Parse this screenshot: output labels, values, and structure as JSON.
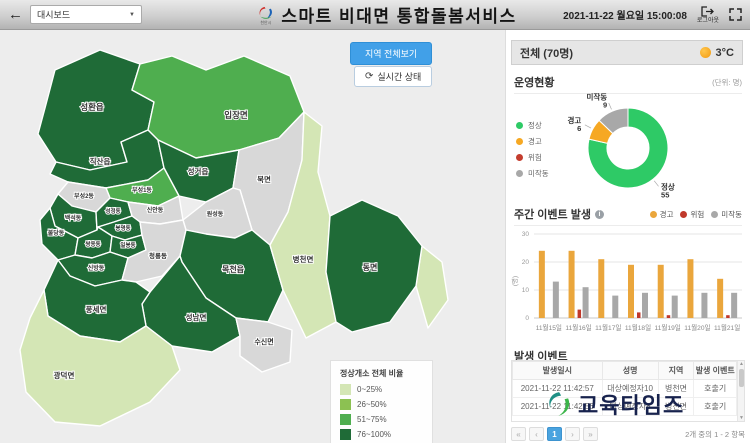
{
  "header": {
    "dashboard_select": "대시보드",
    "logo_caption": "천안시",
    "app_title": "스마트 비대면 통합돌봄서비스",
    "datetime": "2021-11-22 월요일 15:00:08",
    "logout_label": "로그아웃"
  },
  "map_pane": {
    "view_all_button": "지역 전체보기",
    "realtime_button": "실시간 상태",
    "legend": {
      "title": "정상개소 전체 비율",
      "items": [
        {
          "label": "0~25%",
          "color": "#d4e6b5"
        },
        {
          "label": "26~50%",
          "color": "#8cc152"
        },
        {
          "label": "51~75%",
          "color": "#4fae4f"
        },
        {
          "label": "76~100%",
          "color": "#1f6b37"
        }
      ]
    },
    "no_data_color": "#d8d8d8",
    "districts": [
      {
        "name": "성환읍",
        "level": 4
      },
      {
        "name": "입장면",
        "level": 3
      },
      {
        "name": "직산읍",
        "level": 4
      },
      {
        "name": "성거읍",
        "level": 4
      },
      {
        "name": "부성1동",
        "level": 3
      },
      {
        "name": "부성2동",
        "level": 0
      },
      {
        "name": "북면",
        "level": 0
      },
      {
        "name": "백석동",
        "level": 4
      },
      {
        "name": "성정동",
        "level": 4
      },
      {
        "name": "신안동",
        "level": 0
      },
      {
        "name": "원성동",
        "level": 0
      },
      {
        "name": "불당동",
        "level": 4
      },
      {
        "name": "봉명동",
        "level": 4
      },
      {
        "name": "쌍용동",
        "level": 4
      },
      {
        "name": "일봉동",
        "level": 4
      },
      {
        "name": "신방동",
        "level": 4
      },
      {
        "name": "청룡동",
        "level": 0
      },
      {
        "name": "목천읍",
        "level": 4
      },
      {
        "name": "병천면",
        "level": 1
      },
      {
        "name": "동면",
        "level": 4
      },
      {
        "name": "성남면",
        "level": 4
      },
      {
        "name": "수신면",
        "level": 0
      },
      {
        "name": "풍세면",
        "level": 4
      },
      {
        "name": "광덕면",
        "level": 1
      }
    ]
  },
  "panel": {
    "overall_label": "전체 (70명)",
    "temperature": "3°C",
    "events": {
      "title": "발생 이벤트",
      "columns": [
        "발생일시",
        "성명",
        "지역",
        "발생 이벤트"
      ],
      "rows": [
        [
          "2021-11-22 11:42:57",
          "대상예정자10",
          "병천면",
          "호출기"
        ],
        [
          "2021-11-22 11:42:56",
          "대상예정자8",
          "병천면",
          "호출기"
        ]
      ],
      "pagination": {
        "first": "«",
        "prev": "‹",
        "page": "1",
        "next": "›",
        "last": "»",
        "summary": "2개 중의 1 - 2 항목"
      }
    }
  },
  "watermark": "교육타임즈",
  "icons": {
    "back": "←",
    "caret": "▼",
    "refresh": "⟳",
    "info": "i"
  },
  "chart_data": [
    {
      "type": "pie",
      "donut": true,
      "title": "운영현황",
      "unit": "(단위: 명)",
      "labels": [
        "정상",
        "경고",
        "위험",
        "미작동"
      ],
      "values": [
        55,
        6,
        0,
        9
      ],
      "colors": [
        "#2eca66",
        "#f6a823",
        "#c43d2e",
        "#a8a8a8"
      ],
      "legend_position": "left"
    },
    {
      "type": "bar",
      "title": "주간 이벤트 발생",
      "categories": [
        "11월15일",
        "11월16일",
        "11월17일",
        "11월18일",
        "11월19일",
        "11월20일",
        "11월21일"
      ],
      "series": [
        {
          "name": "경고",
          "color": "#eaa63c",
          "values": [
            24,
            24,
            21,
            19,
            19,
            21,
            14
          ]
        },
        {
          "name": "위험",
          "color": "#c0392b",
          "values": [
            0,
            3,
            0,
            2,
            1,
            0,
            1
          ]
        },
        {
          "name": "미작동",
          "color": "#a8a8a8",
          "values": [
            13,
            11,
            8,
            9,
            8,
            9,
            9
          ]
        }
      ],
      "ylabel": "(명)",
      "ylim": [
        0,
        30
      ],
      "yticks": [
        0,
        10,
        20,
        30
      ],
      "grid": true,
      "legend_position": "top-right"
    }
  ]
}
